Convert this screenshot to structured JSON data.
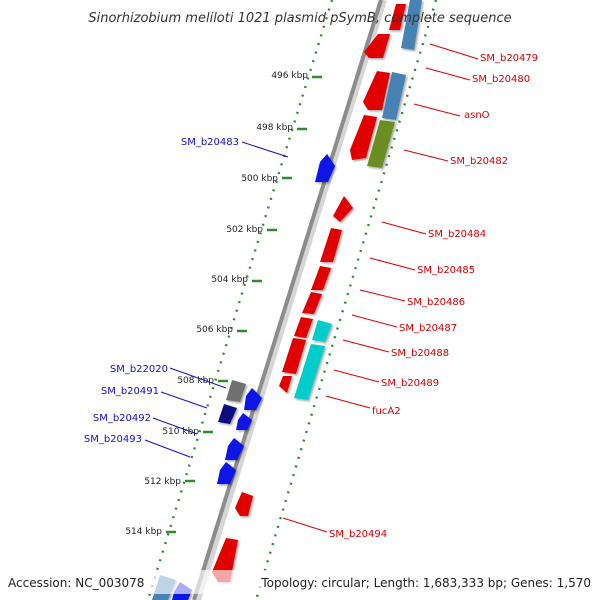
{
  "title": "Sinorhizobium meliloti 1021 plasmid pSymB, complete sequence",
  "footer": {
    "accession": "Accession: NC_003078",
    "summary": "Topology: circular; Length: 1,683,333 bp; Genes: 1,570"
  },
  "colors": {
    "backbone": "#8c8c8c",
    "tick_dots": "#2e8b2e",
    "forward_label": "#d40000",
    "reverse_label": "#1010c8",
    "cds_red": "#e00000",
    "cds_blue": "#0a14e6",
    "cds_navy": "#0a0a80",
    "cds_steel": "#4682b4",
    "cds_olive": "#6b8e23",
    "cds_cyan": "#00cccc",
    "cds_gray": "#707070"
  },
  "ticks": [
    "496 kbp",
    "498 kbp",
    "500 kbp",
    "502 kbp",
    "504 kbp",
    "506 kbp",
    "508 kbp",
    "510 kbp",
    "512 kbp",
    "514 kbp"
  ],
  "forward_labels": [
    "SM_b20479",
    "SM_b20480",
    "asnO",
    "SM_b20482",
    "SM_b20484",
    "SM_b20485",
    "SM_b20486",
    "SM_b20487",
    "SM_b20488",
    "SM_b20489",
    "fucA2",
    "SM_b20494"
  ],
  "reverse_labels": [
    "SM_b20483",
    "SM_b22020",
    "SM_b20491",
    "SM_b20492",
    "SM_b20493"
  ]
}
